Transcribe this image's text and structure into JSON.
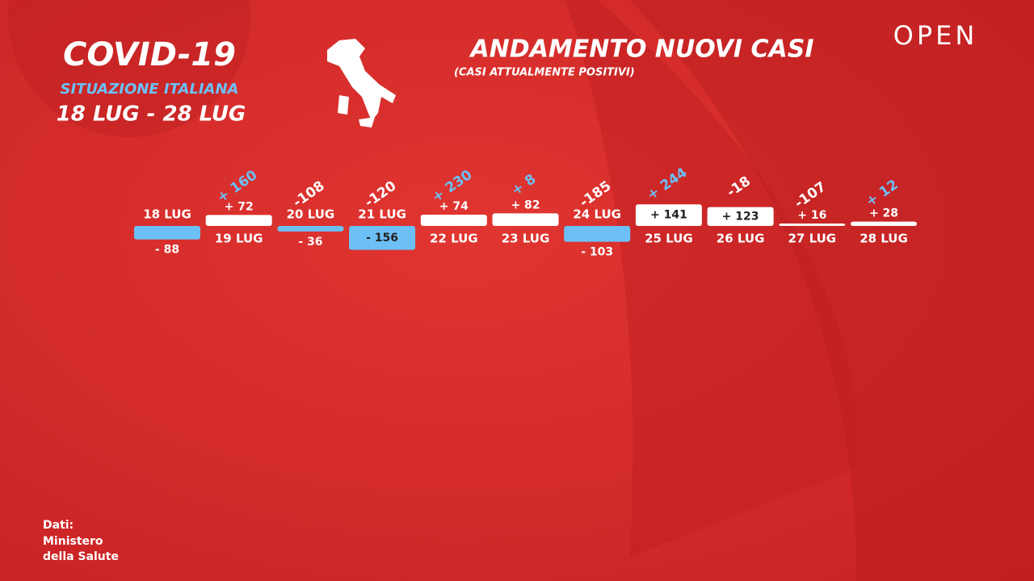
{
  "header": {
    "title": "COVID-19",
    "subtitle": "SITUAZIONE ITALIANA",
    "period": "18 LUG - 28 LUG",
    "brand": "OPEN"
  },
  "source": [
    "Dati:",
    "Ministero",
    "della Salute"
  ],
  "chart_data": {
    "type": "bar",
    "title": "ANDAMENTO NUOVI CASI",
    "subtitle": "(CASI ATTUALMENTE POSITIVI)",
    "categories": [
      "18 LUG",
      "19 LUG",
      "20 LUG",
      "21 LUG",
      "22 LUG",
      "23 LUG",
      "24 LUG",
      "25 LUG",
      "26 LUG",
      "27 LUG",
      "28 LUG"
    ],
    "values": [
      -88,
      72,
      -36,
      -156,
      74,
      82,
      -103,
      141,
      123,
      16,
      28
    ],
    "value_labels": [
      "- 88",
      "+ 72",
      "- 36",
      "- 156",
      "+ 74",
      "+ 82",
      "- 103",
      "+ 141",
      "+ 123",
      "+ 16",
      "+ 28"
    ],
    "positive_color": "#ffffff",
    "negative_color": "#6cc0f5",
    "changes": {
      "values": [
        null,
        160,
        -108,
        -120,
        230,
        8,
        -185,
        244,
        -18,
        -107,
        12
      ],
      "value_labels": [
        null,
        "+ 160",
        "-108",
        "-120",
        "+ 230",
        "+ 8",
        "-185",
        "+ 244",
        "-18",
        "-107",
        "+ 12"
      ],
      "positive_color": "#6cc0f5",
      "negative_color": "#ffffff"
    }
  }
}
